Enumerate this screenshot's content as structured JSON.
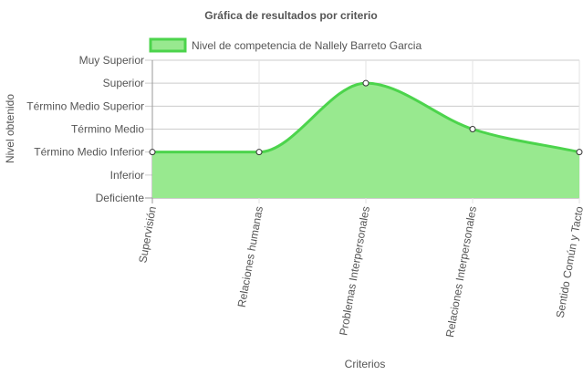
{
  "chart_data": {
    "type": "area",
    "title": "Gráfica de resultados por criterio",
    "xlabel": "Criterios",
    "ylabel": "Nivel obtenido",
    "y_levels": [
      "Deficiente",
      "Inferior",
      "Término Medio Inferior",
      "Término Medio",
      "Término Medio Superior",
      "Superior",
      "Muy Superior"
    ],
    "categories": [
      "Supervisión",
      "Relaciones humanas",
      "Problemas Interpersonales",
      "Relaciones Interpersonales",
      "Sentido Común y Tacto"
    ],
    "series": [
      {
        "name": "Nivel de competencia de Nallely Barreto Garcia",
        "values": [
          "Término Medio Inferior",
          "Término Medio Inferior",
          "Superior",
          "Término Medio",
          "Término Medio Inferior"
        ],
        "color": "#4cd44c",
        "fill": "#98e98f"
      }
    ],
    "legend_position": "top",
    "grid": true
  }
}
